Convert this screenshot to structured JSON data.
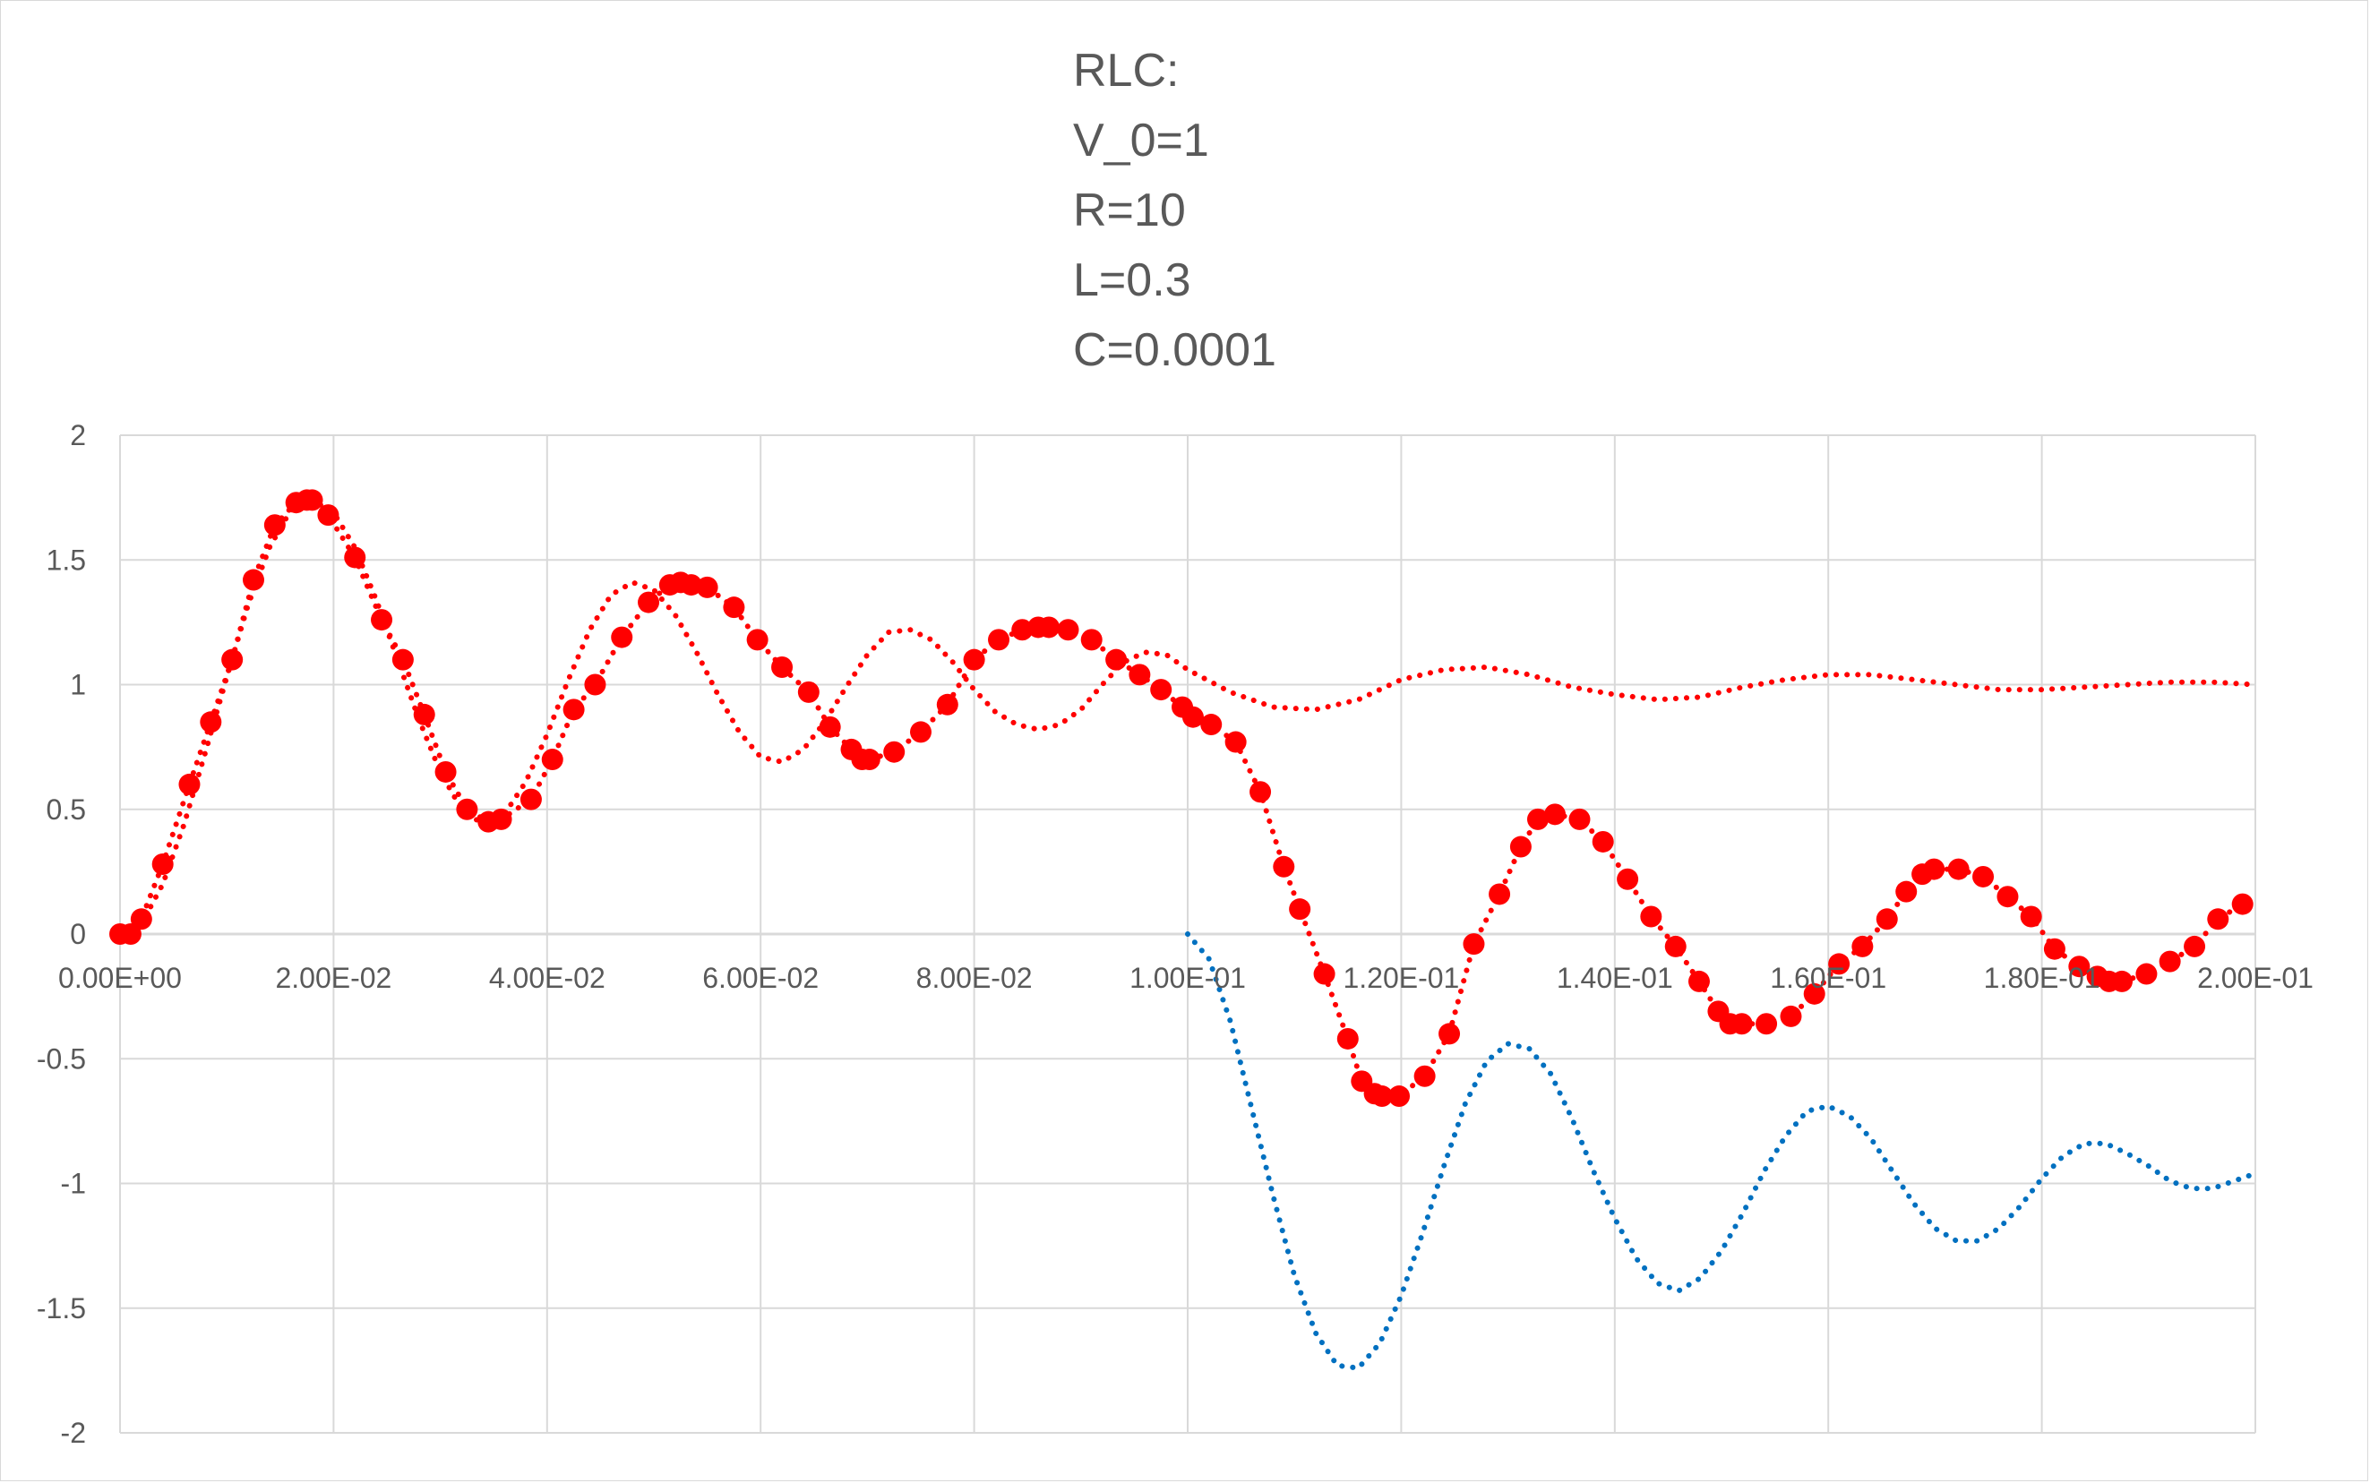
{
  "chart_data": {
    "type": "line",
    "title_lines": [
      "RLC:",
      "V_0=1",
      "R=10",
      "L=0.3",
      "C=0.0001"
    ],
    "xlabel": "",
    "ylabel": "",
    "xlim": [
      0,
      0.2
    ],
    "ylim": [
      -2,
      2
    ],
    "x_ticks": [
      0,
      0.02,
      0.04,
      0.06,
      0.08,
      0.1,
      0.12,
      0.14,
      0.16,
      0.18,
      0.2
    ],
    "x_tick_labels": [
      "0.00E+00",
      "2.00E-02",
      "4.00E-02",
      "6.00E-02",
      "8.00E-02",
      "1.00E-01",
      "1.20E-01",
      "1.40E-01",
      "1.60E-01",
      "1.80E-01",
      "2.00E-01"
    ],
    "y_ticks": [
      2,
      1.5,
      1,
      0.5,
      0,
      -0.5,
      -1,
      -1.5,
      -2
    ],
    "y_tick_labels": [
      "2",
      "1.5",
      "1",
      "0.5",
      "0",
      "-0.5",
      "-1",
      "-1.5",
      "-2"
    ],
    "grid": true,
    "legend": "none",
    "colors": {
      "red": "#ff0000",
      "blue": "#0070c0",
      "grid": "#d9d9d9",
      "text": "#595959"
    },
    "series": [
      {
        "color": "#ff0000",
        "style": "dotted",
        "x": [
          0,
          0.002,
          0.004,
          0.006,
          0.008,
          0.01,
          0.012,
          0.014,
          0.016,
          0.018,
          0.02,
          0.022,
          0.024,
          0.026,
          0.028,
          0.03,
          0.032,
          0.034,
          0.036,
          0.038,
          0.04,
          0.042,
          0.044,
          0.046,
          0.048,
          0.05,
          0.052,
          0.054,
          0.056,
          0.058,
          0.06,
          0.062,
          0.064,
          0.066,
          0.068,
          0.07,
          0.072,
          0.074,
          0.076,
          0.078,
          0.08,
          0.082,
          0.084,
          0.086,
          0.088,
          0.09,
          0.092,
          0.094,
          0.096,
          0.098,
          0.1,
          0.104,
          0.108,
          0.112,
          0.116,
          0.12,
          0.124,
          0.128,
          0.132,
          0.136,
          0.14,
          0.144,
          0.148,
          0.152,
          0.156,
          0.16,
          0.164,
          0.168,
          0.172,
          0.176,
          0.18,
          0.184,
          0.188,
          0.192,
          0.196,
          0.2
        ],
        "y": [
          0,
          0.04,
          0.2,
          0.44,
          0.73,
          1.03,
          1.32,
          1.55,
          1.7,
          1.74,
          1.69,
          1.55,
          1.34,
          1.1,
          0.86,
          0.65,
          0.5,
          0.44,
          0.48,
          0.61,
          0.8,
          1.02,
          1.22,
          1.36,
          1.41,
          1.38,
          1.28,
          1.13,
          0.96,
          0.81,
          0.71,
          0.69,
          0.74,
          0.85,
          0.99,
          1.12,
          1.21,
          1.22,
          1.18,
          1.09,
          0.98,
          0.89,
          0.84,
          0.82,
          0.84,
          0.9,
          1.0,
          1.09,
          1.13,
          1.12,
          1.06,
          0.97,
          0.91,
          0.9,
          0.94,
          1.02,
          1.06,
          1.07,
          1.04,
          0.99,
          0.96,
          0.94,
          0.95,
          0.99,
          1.02,
          1.04,
          1.04,
          1.02,
          1.0,
          0.98,
          0.98,
          0.99,
          1.0,
          1.01,
          1.01,
          1.0
        ]
      },
      {
        "color": "#0070c0",
        "style": "dotted",
        "x": [
          0.1,
          0.102,
          0.104,
          0.106,
          0.108,
          0.11,
          0.112,
          0.114,
          0.116,
          0.118,
          0.12,
          0.122,
          0.124,
          0.126,
          0.128,
          0.13,
          0.132,
          0.134,
          0.136,
          0.138,
          0.14,
          0.142,
          0.144,
          0.146,
          0.148,
          0.15,
          0.152,
          0.154,
          0.156,
          0.158,
          0.16,
          0.162,
          0.164,
          0.166,
          0.168,
          0.17,
          0.172,
          0.174,
          0.176,
          0.178,
          0.18,
          0.182,
          0.184,
          0.186,
          0.188,
          0.19,
          0.192,
          0.194,
          0.196,
          0.198,
          0.2
        ],
        "y": [
          0.0,
          -0.1,
          -0.35,
          -0.7,
          -1.05,
          -1.37,
          -1.6,
          -1.73,
          -1.74,
          -1.64,
          -1.45,
          -1.2,
          -0.93,
          -0.68,
          -0.51,
          -0.44,
          -0.46,
          -0.56,
          -0.74,
          -0.95,
          -1.14,
          -1.3,
          -1.4,
          -1.43,
          -1.38,
          -1.27,
          -1.12,
          -0.95,
          -0.81,
          -0.71,
          -0.69,
          -0.73,
          -0.82,
          -0.95,
          -1.08,
          -1.18,
          -1.23,
          -1.23,
          -1.18,
          -1.09,
          -0.98,
          -0.89,
          -0.84,
          -0.84,
          -0.88,
          -0.93,
          -0.99,
          -1.02,
          -1.02,
          -0.99,
          -0.96
        ]
      },
      {
        "color": "#ff0000",
        "style": "dotted",
        "markers": true,
        "x": [
          0,
          0.001,
          0.002,
          0.004,
          0.0065,
          0.0085,
          0.0105,
          0.0125,
          0.0145,
          0.0165,
          0.0175,
          0.018,
          0.0195,
          0.022,
          0.0245,
          0.0265,
          0.0285,
          0.0305,
          0.0325,
          0.0345,
          0.0357,
          0.0385,
          0.0405,
          0.0425,
          0.0445,
          0.047,
          0.0495,
          0.0515,
          0.0525,
          0.0535,
          0.055,
          0.0575,
          0.0597,
          0.062,
          0.0645,
          0.0665,
          0.0685,
          0.0695,
          0.0702,
          0.0725,
          0.075,
          0.0775,
          0.08,
          0.0823,
          0.0845,
          0.086,
          0.087,
          0.0888,
          0.091,
          0.0933,
          0.0955,
          0.0975,
          0.0995,
          0.1005,
          0.1022,
          0.1045,
          0.1068,
          0.109,
          0.1105,
          0.1128,
          0.115,
          0.1163,
          0.1175,
          0.1182,
          0.1198,
          0.1222,
          0.1245,
          0.1268,
          0.1292,
          0.1312,
          0.1328,
          0.1344,
          0.1367,
          0.1389,
          0.1412,
          0.1434,
          0.1457,
          0.1479,
          0.1497,
          0.1508,
          0.1519,
          0.1542,
          0.1565,
          0.1587,
          0.161,
          0.1632,
          0.1655,
          0.1673,
          0.1688,
          0.1699,
          0.1722,
          0.1745,
          0.1768,
          0.179,
          0.1812,
          0.1835,
          0.1852,
          0.1863,
          0.1875,
          0.1898,
          0.192,
          0.1943,
          0.1965,
          0.1988
        ],
        "y": [
          0,
          0,
          0.06,
          0.28,
          0.6,
          0.85,
          1.1,
          1.42,
          1.64,
          1.73,
          1.74,
          1.74,
          1.68,
          1.51,
          1.26,
          1.1,
          0.88,
          0.65,
          0.5,
          0.45,
          0.46,
          0.54,
          0.7,
          0.9,
          1.0,
          1.19,
          1.33,
          1.4,
          1.41,
          1.4,
          1.39,
          1.31,
          1.18,
          1.07,
          0.97,
          0.83,
          0.74,
          0.7,
          0.7,
          0.73,
          0.81,
          0.92,
          1.1,
          1.18,
          1.22,
          1.23,
          1.23,
          1.22,
          1.18,
          1.1,
          1.04,
          0.98,
          0.91,
          0.87,
          0.84,
          0.77,
          0.57,
          0.27,
          0.1,
          -0.16,
          -0.42,
          -0.59,
          -0.64,
          -0.65,
          -0.65,
          -0.57,
          -0.4,
          -0.04,
          0.16,
          0.35,
          0.46,
          0.48,
          0.46,
          0.37,
          0.22,
          0.07,
          -0.05,
          -0.19,
          -0.31,
          -0.36,
          -0.36,
          -0.36,
          -0.33,
          -0.24,
          -0.12,
          -0.05,
          0.06,
          0.17,
          0.24,
          0.26,
          0.26,
          0.23,
          0.15,
          0.07,
          -0.06,
          -0.13,
          -0.17,
          -0.19,
          -0.19,
          -0.16,
          -0.11,
          -0.05,
          0.06,
          0.12
        ]
      }
    ]
  }
}
